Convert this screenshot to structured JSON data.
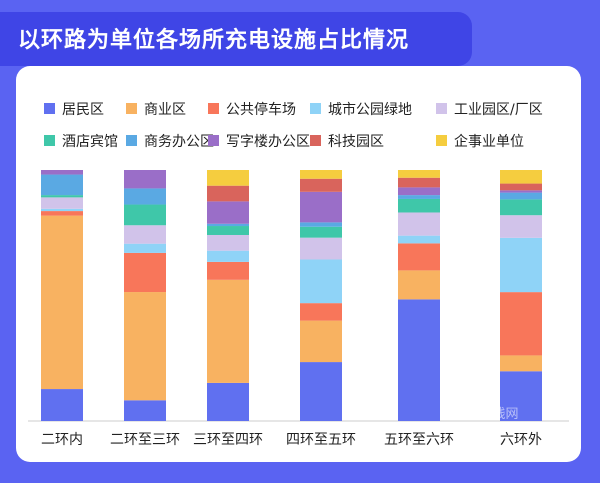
{
  "title": "以环路为单位各场所充电设施占比情况",
  "chart_data": {
    "type": "bar",
    "stacked": true,
    "normalized": true,
    "categories": [
      "二环内",
      "二环至三环",
      "三环至四环",
      "四环至五环",
      "五环至六环",
      "六环外"
    ],
    "ylim": [
      0,
      100
    ],
    "grid": false,
    "legend_position": "top",
    "series": [
      {
        "name": "居民区",
        "color": "#6070f0",
        "values": [
          14,
          9,
          17,
          27,
          63,
          22
        ]
      },
      {
        "name": "商业区",
        "color": "#f8b261",
        "values": [
          76,
          47,
          46,
          19,
          15,
          7
        ]
      },
      {
        "name": "公共停车场",
        "color": "#f8765a",
        "values": [
          2,
          17,
          8,
          8,
          14,
          28
        ]
      },
      {
        "name": "城市公园绿地",
        "color": "#8fd3f7",
        "values": [
          1,
          4,
          5,
          20,
          4,
          24
        ]
      },
      {
        "name": "工业园区/厂区",
        "color": "#d1c3ea",
        "values": [
          5,
          8,
          7,
          10,
          12,
          10
        ]
      },
      {
        "name": "酒店宾馆",
        "color": "#3fc7a9",
        "values": [
          1,
          9,
          4,
          5,
          7,
          7
        ]
      },
      {
        "name": "商务办公区",
        "color": "#5aa9e3",
        "values": [
          9,
          7,
          1,
          2,
          2,
          3
        ]
      },
      {
        "name": "写字楼办公区",
        "color": "#9a6ec8",
        "values": [
          2,
          8,
          10,
          14,
          4,
          1
        ]
      },
      {
        "name": "科技园区",
        "color": "#d9645c",
        "values": [
          0,
          0,
          7,
          6,
          5,
          3
        ]
      },
      {
        "name": "企事业单位",
        "color": "#f5cd3f",
        "values": [
          0,
          0,
          7,
          4,
          4,
          6
        ]
      }
    ]
  },
  "watermark": {
    "text": "海淀在线网"
  }
}
